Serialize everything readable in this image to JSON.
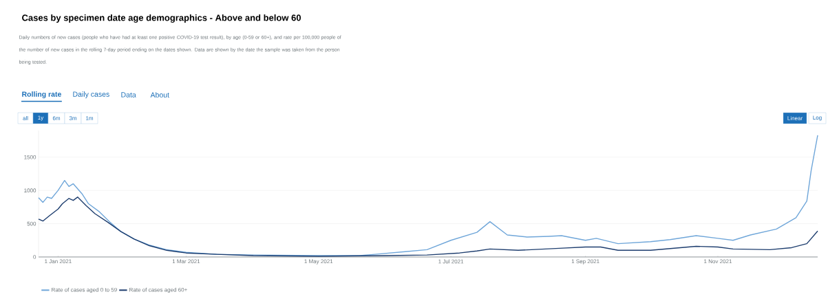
{
  "chart_data": {
    "type": "line",
    "title": "Cases by specimen date age demographics - Above and below 60",
    "subtitle": "Daily numbers of new cases (people who have had at least one positive COVID-19 test result), by age (0-59 or 60+), and rate per 100,000 people of the number of new cases in the rolling 7-day period ending on the dates shown. Data are shown by the date the sample was taken from the person being tested.",
    "annotations": [
      "Rolling rate",
      "Daily cases",
      "Data",
      "About",
      "all",
      "1y",
      "6m",
      "3m",
      "1m",
      "Linear",
      "Log"
    ],
    "xlim": [
      "2020-12-23",
      "2021-12-17"
    ],
    "xticks": [
      {
        "value": "2021-01-01",
        "label": "1 Jan 2021"
      },
      {
        "value": "2021-03-01",
        "label": "1 Mar 2021"
      },
      {
        "value": "2021-05-01",
        "label": "1 May 2021"
      },
      {
        "value": "2021-07-01",
        "label": "1 Jul 2021"
      },
      {
        "value": "2021-09-01",
        "label": "1 Sep 2021"
      },
      {
        "value": "2021-11-01",
        "label": "1 Nov 2021"
      }
    ],
    "ylim": [
      0,
      1900
    ],
    "yticks": [
      0,
      500,
      1000,
      1500
    ],
    "grid": "y",
    "legend": "bottom left",
    "line_style": "solid",
    "marker": "none",
    "series": [
      {
        "name": "Rate of cases aged 0 to 59",
        "color": "#6fa6d9",
        "x": [
          "2020-12-23",
          "2020-12-25",
          "2020-12-27",
          "2020-12-29",
          "2021-01-01",
          "2021-01-04",
          "2021-01-06",
          "2021-01-08",
          "2021-01-12",
          "2021-01-15",
          "2021-01-20",
          "2021-01-25",
          "2021-01-30",
          "2021-02-05",
          "2021-02-12",
          "2021-02-20",
          "2021-03-01",
          "2021-03-15",
          "2021-04-01",
          "2021-05-01",
          "2021-05-20",
          "2021-05-27",
          "2021-06-10",
          "2021-06-20",
          "2021-07-01",
          "2021-07-13",
          "2021-07-19",
          "2021-07-27",
          "2021-08-05",
          "2021-08-15",
          "2021-08-21",
          "2021-09-01",
          "2021-09-06",
          "2021-09-16",
          "2021-10-01",
          "2021-10-10",
          "2021-10-22",
          "2021-11-01",
          "2021-11-08",
          "2021-11-16",
          "2021-11-28",
          "2021-12-07",
          "2021-12-12",
          "2021-12-14",
          "2021-12-17"
        ],
        "values": [
          890,
          820,
          900,
          880,
          1000,
          1150,
          1060,
          1100,
          950,
          800,
          680,
          520,
          380,
          270,
          180,
          110,
          70,
          40,
          30,
          20,
          20,
          40,
          80,
          110,
          250,
          370,
          530,
          330,
          300,
          310,
          320,
          250,
          280,
          200,
          230,
          260,
          320,
          280,
          250,
          330,
          420,
          590,
          840,
          1300,
          1830
        ]
      },
      {
        "name": "Rate of cases aged 60+",
        "color": "#1d3d6e",
        "x": [
          "2020-12-23",
          "2020-12-25",
          "2020-12-28",
          "2021-01-01",
          "2021-01-03",
          "2021-01-06",
          "2021-01-08",
          "2021-01-10",
          "2021-01-14",
          "2021-01-18",
          "2021-01-24",
          "2021-01-30",
          "2021-02-05",
          "2021-02-12",
          "2021-02-20",
          "2021-03-01",
          "2021-03-15",
          "2021-04-01",
          "2021-05-01",
          "2021-06-01",
          "2021-06-20",
          "2021-07-05",
          "2021-07-13",
          "2021-07-19",
          "2021-08-01",
          "2021-08-20",
          "2021-09-01",
          "2021-09-08",
          "2021-09-16",
          "2021-10-01",
          "2021-10-22",
          "2021-11-01",
          "2021-11-08",
          "2021-11-25",
          "2021-12-05",
          "2021-12-12",
          "2021-12-17"
        ],
        "values": [
          570,
          540,
          620,
          720,
          800,
          880,
          850,
          900,
          770,
          650,
          520,
          380,
          270,
          170,
          100,
          60,
          40,
          20,
          10,
          20,
          30,
          60,
          90,
          120,
          100,
          130,
          150,
          150,
          100,
          100,
          160,
          150,
          120,
          110,
          140,
          200,
          390
        ]
      }
    ]
  }
}
